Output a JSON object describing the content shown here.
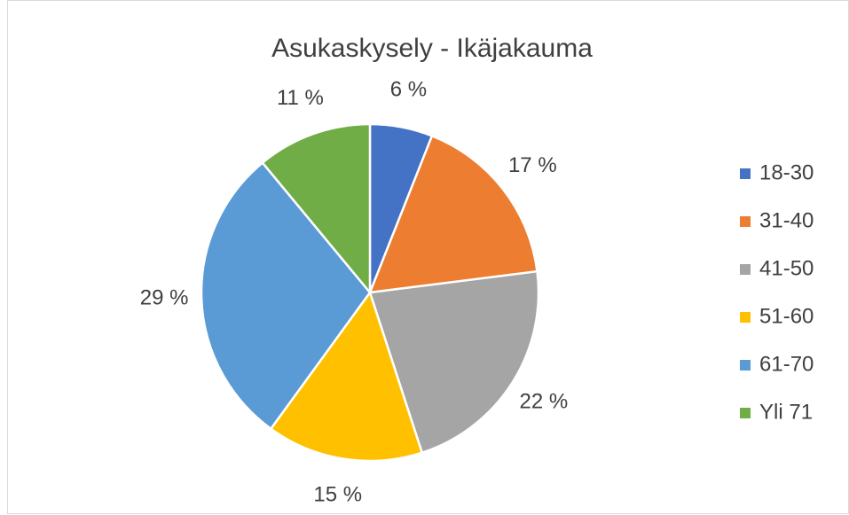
{
  "chart_data": {
    "type": "pie",
    "title": "Asukaskysely - Ikäjakauma",
    "categories": [
      "18-30",
      "31-40",
      "41-50",
      "51-60",
      "61-70",
      "Yli 71"
    ],
    "values": [
      6,
      17,
      22,
      15,
      29,
      11
    ],
    "value_labels": [
      "6 %",
      "17 %",
      "22 %",
      "15 %",
      "29 %",
      "11 %"
    ],
    "colors": [
      "#4472c4",
      "#ed7d31",
      "#a5a5a5",
      "#ffc000",
      "#5b9bd5",
      "#70ad47"
    ],
    "legend": "right"
  }
}
